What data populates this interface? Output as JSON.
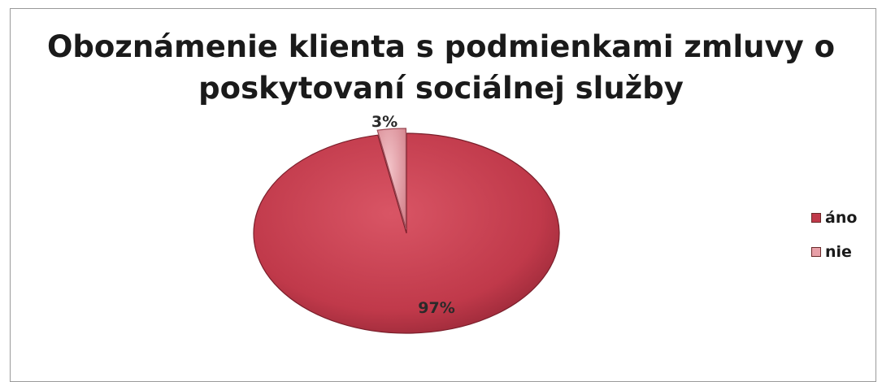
{
  "chart_data": {
    "type": "pie",
    "title": "Oboznámenie klienta s podmienkami zmluvy o poskytovaní sociálnej služby",
    "categories": [
      "áno",
      "nie"
    ],
    "values": [
      97,
      3
    ],
    "labels": [
      "97%",
      "3%"
    ],
    "colors": [
      "#c0394a",
      "#e8a0a8"
    ],
    "legend_position": "right"
  }
}
